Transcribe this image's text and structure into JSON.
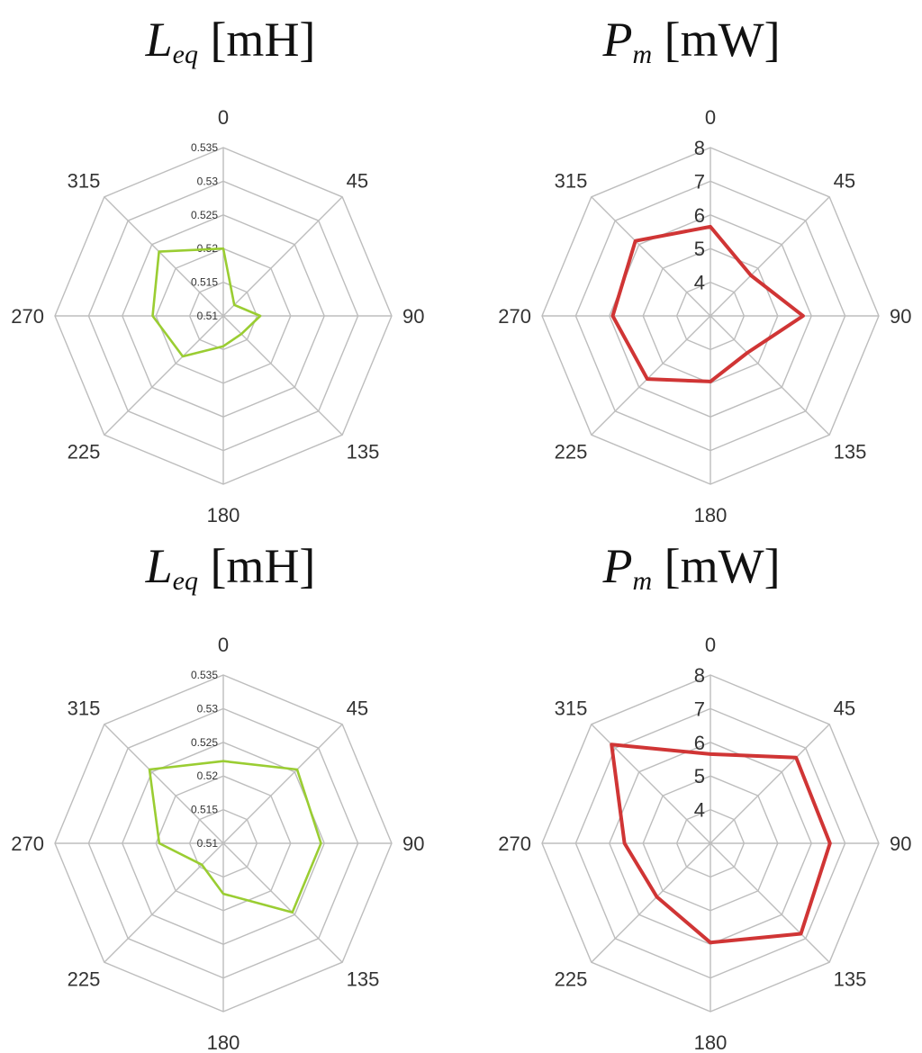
{
  "colors": {
    "inductance": "#9acd32",
    "power": "#d03535",
    "grid": "#bdbdbd"
  },
  "titles": {
    "inductance": {
      "symbol": "L",
      "subscript": "eq",
      "unit": "[mH]"
    },
    "power": {
      "symbol": "P",
      "subscript": "m",
      "unit": "[mW]"
    }
  },
  "chart_data": [
    {
      "type": "radar",
      "categories": [
        "0",
        "45",
        "90",
        "135",
        "180",
        "225",
        "270",
        "315"
      ],
      "rlim": [
        0.51,
        0.535
      ],
      "ticks": [
        "0.51",
        "0.515",
        "0.52",
        "0.525",
        "0.53",
        "0.535"
      ],
      "series": [
        {
          "values": [
            0.52,
            0.5123,
            0.5155,
            0.5138,
            0.5145,
            0.5185,
            0.5205,
            0.5235
          ]
        }
      ]
    },
    {
      "type": "radar",
      "categories": [
        "0",
        "45",
        "90",
        "135",
        "180",
        "225",
        "270",
        "315"
      ],
      "rlim": [
        3,
        8
      ],
      "ticks": [
        "4",
        "5",
        "6",
        "7",
        "8"
      ],
      "series": [
        {
          "values": [
            5.65,
            4.7,
            5.75,
            4.55,
            4.95,
            5.65,
            5.9,
            6.15
          ]
        }
      ]
    },
    {
      "type": "radar",
      "categories": [
        "0",
        "45",
        "90",
        "135",
        "180",
        "225",
        "270",
        "315"
      ],
      "rlim": [
        0.51,
        0.535
      ],
      "ticks": [
        "0.51",
        "0.515",
        "0.52",
        "0.525",
        "0.53",
        "0.535"
      ],
      "series": [
        {
          "values": [
            0.5222,
            0.5255,
            0.5245,
            0.5245,
            0.5175,
            0.5145,
            0.5195,
            0.5255
          ]
        }
      ]
    },
    {
      "type": "radar",
      "categories": [
        "0",
        "45",
        "90",
        "135",
        "180",
        "225",
        "270",
        "315"
      ],
      "rlim": [
        3,
        8
      ],
      "ticks": [
        "4",
        "5",
        "6",
        "7",
        "8"
      ],
      "series": [
        {
          "values": [
            5.65,
            6.6,
            6.55,
            6.8,
            5.95,
            5.25,
            5.55,
            7.15
          ]
        }
      ]
    }
  ]
}
